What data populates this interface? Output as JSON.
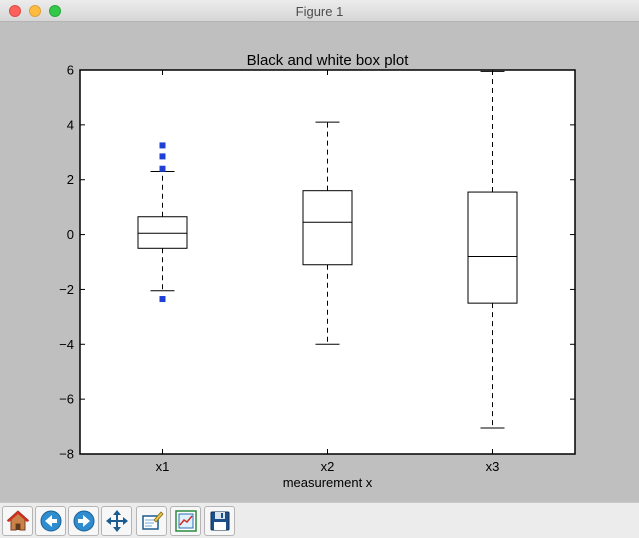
{
  "window": {
    "title": "Figure 1"
  },
  "toolbar": {
    "buttons": [
      {
        "name": "home",
        "icon": "home-icon"
      },
      {
        "name": "back",
        "icon": "back-arrow-icon"
      },
      {
        "name": "forward",
        "icon": "forward-arrow-icon"
      },
      {
        "name": "pan",
        "icon": "move-arrows-icon"
      },
      {
        "name": "zoom",
        "icon": "zoom-rectangle-icon"
      },
      {
        "name": "configure-subplots",
        "icon": "subplots-icon"
      },
      {
        "name": "save",
        "icon": "floppy-disk-icon"
      }
    ]
  },
  "chart_data": {
    "type": "box",
    "title": "Black and white box plot",
    "xlabel": "measurement x",
    "ylabel": "",
    "ylim": [
      -8,
      6
    ],
    "yticks": [
      -8,
      -6,
      -4,
      -2,
      0,
      2,
      4,
      6
    ],
    "ytick_labels": [
      "−8",
      "−6",
      "−4",
      "−2",
      "0",
      "2",
      "4",
      "6"
    ],
    "categories": [
      "x1",
      "x2",
      "x3"
    ],
    "boxes": [
      {
        "label": "x1",
        "whisker_low": -2.05,
        "q1": -0.5,
        "median": 0.05,
        "q3": 0.65,
        "whisker_high": 2.3,
        "outliers": [
          3.25,
          2.85,
          2.4,
          -2.35
        ]
      },
      {
        "label": "x2",
        "whisker_low": -4.0,
        "q1": -1.1,
        "median": 0.45,
        "q3": 1.6,
        "whisker_high": 4.1,
        "outliers": []
      },
      {
        "label": "x3",
        "whisker_low": -7.05,
        "q1": -2.5,
        "median": -0.8,
        "q3": 1.55,
        "whisker_high": 5.95,
        "outliers": []
      }
    ],
    "colors": {
      "box": "#000000",
      "outlier": "#1f3fd6",
      "background": "#ffffff"
    },
    "grid": false
  }
}
